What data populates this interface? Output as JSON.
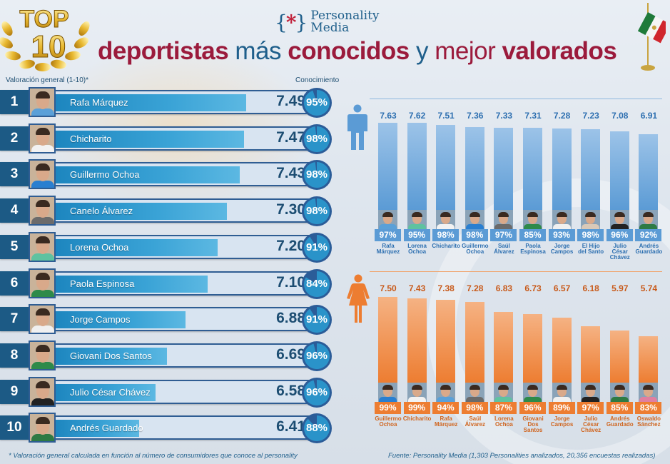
{
  "header": {
    "badge_top": "TOP",
    "badge_num": "10",
    "logo_mark_left": "{",
    "logo_mark_ast": "*",
    "logo_mark_right": "}",
    "logo_line1": "Personality",
    "logo_line2": "Media",
    "title_parts": [
      "deportistas",
      " más ",
      "conocidos",
      " y ",
      "mejor ",
      "valorados"
    ]
  },
  "labels": {
    "rating": "Valoración general (1-10)*",
    "awareness": "Conocimiento"
  },
  "colors": {
    "male": "#5b9bd5",
    "male_text": "#2d6fb0",
    "female": "#ed7d31",
    "female_text": "#c85a1a",
    "rank_dark": "#1c5a85",
    "title_red": "#9b1b3c"
  },
  "ranking": [
    {
      "rank": "1",
      "name": "Rafa Márquez",
      "score": "7.49",
      "awareness": "95%",
      "awareness_value": 95,
      "shirt": "#5aa0d8"
    },
    {
      "rank": "2",
      "name": "Chicharito",
      "score": "7.47",
      "awareness": "98%",
      "awareness_value": 98,
      "shirt": "#f2f2f2"
    },
    {
      "rank": "3",
      "name": "Guillermo Ochoa",
      "score": "7.43",
      "awareness": "98%",
      "awareness_value": 98,
      "shirt": "#2a7fd0"
    },
    {
      "rank": "4",
      "name": "Canelo Álvarez",
      "score": "7.30",
      "awareness": "98%",
      "awareness_value": 98,
      "shirt": "#6b6b6b"
    },
    {
      "rank": "5",
      "name": "Lorena Ochoa",
      "score": "7.20",
      "awareness": "91%",
      "awareness_value": 91,
      "shirt": "#5fc2a0"
    },
    {
      "rank": "6",
      "name": "Paola Espinosa",
      "score": "7.10",
      "awareness": "84%",
      "awareness_value": 84,
      "shirt": "#2e8a4a"
    },
    {
      "rank": "7",
      "name": "Jorge Campos",
      "score": "6.88",
      "awareness": "91%",
      "awareness_value": 91,
      "shirt": "#f0f0f0"
    },
    {
      "rank": "8",
      "name": "Giovani Dos Santos",
      "score": "6.69",
      "awareness": "96%",
      "awareness_value": 96,
      "shirt": "#2e8a4a"
    },
    {
      "rank": "9",
      "name": "Julio César Chávez",
      "score": "6.58",
      "awareness": "96%",
      "awareness_value": 96,
      "shirt": "#222222"
    },
    {
      "rank": "10",
      "name": "Andrés Guardado",
      "score": "6.41",
      "awareness": "88%",
      "awareness_value": 88,
      "shirt": "#2e7a44"
    }
  ],
  "chart_data": [
    {
      "type": "bar",
      "title": "Top 10 deportistas - ranking general",
      "xlabel": "",
      "ylabel": "Valoración general (1-10)*",
      "categories": [
        "Rafa Márquez",
        "Chicharito",
        "Guillermo Ochoa",
        "Canelo Álvarez",
        "Lorena Ochoa",
        "Paola Espinosa",
        "Jorge Campos",
        "Giovani Dos Santos",
        "Julio César Chávez",
        "Andrés Guardado"
      ],
      "series": [
        {
          "name": "Valoración general",
          "values": [
            7.49,
            7.47,
            7.43,
            7.3,
            7.2,
            7.1,
            6.88,
            6.69,
            6.58,
            6.41
          ]
        },
        {
          "name": "Conocimiento (%)",
          "values": [
            95,
            98,
            98,
            98,
            91,
            84,
            91,
            96,
            96,
            88
          ]
        }
      ],
      "orientation": "horizontal"
    },
    {
      "type": "bar",
      "title": "Hombres",
      "xlabel": "",
      "ylabel": "",
      "categories": [
        "Rafa Márquez",
        "Lorena Ochoa",
        "Chicharito",
        "Guillermo Ochoa",
        "Saúl Álvarez",
        "Paola Espinosa",
        "Jorge Campos",
        "El Hijo del Santo",
        "Julio César Chávez",
        "Andrés Guardado"
      ],
      "series": [
        {
          "name": "Valoración",
          "values": [
            7.63,
            7.62,
            7.51,
            7.36,
            7.33,
            7.31,
            7.28,
            7.23,
            7.08,
            6.91
          ]
        },
        {
          "name": "Conocimiento (%)",
          "values": [
            97,
            95,
            98,
            98,
            97,
            85,
            93,
            98,
            96,
            92
          ]
        }
      ],
      "value_labels": [
        "7.63",
        "7.62",
        "7.51",
        "7.36",
        "7.33",
        "7.31",
        "7.28",
        "7.23",
        "7.08",
        "6.91"
      ],
      "pct_labels": [
        "97%",
        "95%",
        "98%",
        "98%",
        "97%",
        "85%",
        "93%",
        "98%",
        "96%",
        "92%"
      ],
      "ylim": [
        0,
        7.63
      ]
    },
    {
      "type": "bar",
      "title": "Mujeres",
      "xlabel": "",
      "ylabel": "",
      "categories": [
        "Guillermo Ochoa",
        "Chicharito",
        "Rafa Márquez",
        "Saúl Álvarez",
        "Lorena Ochoa",
        "Giovani Dos Santos",
        "Jorge Campos",
        "Julio César Chávez",
        "Andrés Guardado",
        "Oswaldo Sánchez"
      ],
      "series": [
        {
          "name": "Valoración",
          "values": [
            7.5,
            7.43,
            7.38,
            7.28,
            6.83,
            6.73,
            6.57,
            6.18,
            5.97,
            5.74
          ]
        },
        {
          "name": "Conocimiento (%)",
          "values": [
            99,
            99,
            94,
            98,
            87,
            96,
            89,
            97,
            85,
            83
          ]
        }
      ],
      "value_labels": [
        "7.50",
        "7.43",
        "7.38",
        "7.28",
        "6.83",
        "6.73",
        "6.57",
        "6.18",
        "5.97",
        "5.74"
      ],
      "pct_labels": [
        "99%",
        "99%",
        "94%",
        "98%",
        "87%",
        "96%",
        "89%",
        "97%",
        "85%",
        "83%"
      ],
      "ylim": [
        0,
        7.5
      ]
    }
  ],
  "male_names": [
    [
      "Rafa",
      "Márquez"
    ],
    [
      "Lorena",
      "Ochoa"
    ],
    [
      "Chicharito"
    ],
    [
      "Guillermo",
      "Ochoa"
    ],
    [
      "Saúl",
      "Álvarez"
    ],
    [
      "Paola",
      "Espinosa"
    ],
    [
      "Jorge",
      "Campos"
    ],
    [
      "El Hijo",
      "del Santo"
    ],
    [
      "Julio",
      "César",
      "Chávez"
    ],
    [
      "Andrés",
      "Guardado"
    ]
  ],
  "female_names": [
    [
      "Guillermo",
      "Ochoa"
    ],
    [
      "Chicharito"
    ],
    [
      "Rafa",
      "Márquez"
    ],
    [
      "Saúl",
      "Álvarez"
    ],
    [
      "Lorena",
      "Ochoa"
    ],
    [
      "Giovani",
      "Dos",
      "Santos"
    ],
    [
      "Jorge",
      "Campos"
    ],
    [
      "Julio",
      "César",
      "Chávez"
    ],
    [
      "Andrés",
      "Guardado"
    ],
    [
      "Oswaldo",
      "Sánchez"
    ]
  ],
  "footnotes": {
    "left": "* Valoración general calculada en función al número de consumidores que conoce al personality",
    "right": "Fuente: Personality Media (1,303 Personalities analizados, 20,356 encuestas realizadas)"
  }
}
